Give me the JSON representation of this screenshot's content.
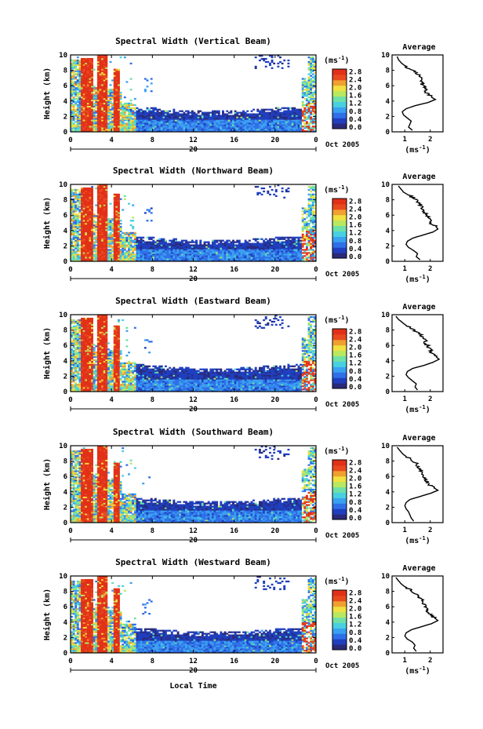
{
  "x_axis_label": "Local Time",
  "date_label": "Oct 2005",
  "day_label": "20",
  "colorbar": {
    "unit": "(ms",
    "unit_sup": "-1",
    "unit_close": ")",
    "ticks": [
      "2.8",
      "2.4",
      "2.0",
      "1.6",
      "1.2",
      "0.8",
      "0.4",
      "0.0"
    ]
  },
  "avg": {
    "title": "Average",
    "xlabel": "(ms",
    "xlabel_sup": "-1",
    "xlabel_close": ")"
  },
  "colors": {
    "scale": [
      "#2a2a7a",
      "#1f3fbf",
      "#2f6fe8",
      "#3aa0f0",
      "#48d0e0",
      "#6ee0a8",
      "#b8e860",
      "#f0e040",
      "#f0a030",
      "#e84a1e",
      "#e23018"
    ]
  },
  "chart_data": [
    {
      "type": "heatmap",
      "title": "Spectral Width (Vertical Beam)",
      "ylabel": "Height (km)",
      "xlabel": "",
      "xlim": [
        0,
        24
      ],
      "ylim": [
        0,
        10
      ],
      "x_ticks": [
        "0",
        "4",
        "8",
        "12",
        "16",
        "20",
        "0"
      ],
      "y_ticks": [
        "0",
        "2",
        "4",
        "6",
        "8",
        "10"
      ],
      "colorbar_range": [
        0.0,
        2.8
      ],
      "average_profile": {
        "title": "Average",
        "x_ticks": [
          "1",
          "2"
        ],
        "xlim": [
          0.5,
          2.5
        ],
        "y_ticks": [
          "0",
          "2",
          "4",
          "6",
          "8",
          "10"
        ],
        "heights": [
          0.2,
          0.6,
          1.0,
          1.4,
          1.8,
          2.2,
          2.6,
          3.0,
          3.4,
          3.8,
          4.2,
          4.6,
          5.0,
          5.4,
          5.8,
          6.2,
          6.6,
          7.0,
          7.4,
          7.8,
          8.2,
          8.6,
          9.0,
          9.4,
          9.8
        ],
        "values": [
          1.3,
          1.15,
          1.2,
          1.25,
          1.1,
          0.95,
          0.9,
          1.05,
          1.4,
          1.9,
          2.2,
          2.0,
          1.9,
          1.8,
          1.75,
          1.7,
          1.65,
          1.6,
          1.55,
          1.4,
          1.2,
          1.0,
          0.85,
          0.75,
          0.7
        ]
      }
    },
    {
      "type": "heatmap",
      "title": "Spectral Width (Northward Beam)",
      "ylabel": "Height (km)",
      "xlabel": "",
      "xlim": [
        0,
        24
      ],
      "ylim": [
        0,
        10
      ],
      "x_ticks": [
        "0",
        "4",
        "8",
        "12",
        "16",
        "20",
        "0"
      ],
      "y_ticks": [
        "0",
        "2",
        "4",
        "6",
        "8",
        "10"
      ],
      "colorbar_range": [
        0.0,
        2.8
      ],
      "average_profile": {
        "title": "Average",
        "x_ticks": [
          "1",
          "2"
        ],
        "xlim": [
          0.5,
          2.5
        ],
        "y_ticks": [
          "0",
          "2",
          "4",
          "6",
          "8",
          "10"
        ],
        "heights": [
          0.2,
          0.6,
          1.0,
          1.4,
          1.8,
          2.2,
          2.6,
          3.0,
          3.4,
          3.8,
          4.2,
          4.6,
          5.0,
          5.4,
          5.8,
          6.2,
          6.6,
          7.0,
          7.4,
          7.8,
          8.2,
          8.6,
          9.0,
          9.4,
          9.8
        ],
        "values": [
          1.6,
          1.45,
          1.5,
          1.35,
          1.15,
          1.05,
          1.1,
          1.3,
          1.7,
          2.1,
          2.3,
          2.2,
          2.0,
          1.95,
          1.9,
          1.8,
          1.75,
          1.7,
          1.6,
          1.5,
          1.35,
          1.15,
          0.95,
          0.85,
          0.75
        ]
      }
    },
    {
      "type": "heatmap",
      "title": "Spectral Width (Eastward Beam)",
      "ylabel": "Height (km)",
      "xlabel": "",
      "xlim": [
        0,
        24
      ],
      "ylim": [
        0,
        10
      ],
      "x_ticks": [
        "0",
        "4",
        "8",
        "12",
        "16",
        "20",
        "0"
      ],
      "y_ticks": [
        "0",
        "2",
        "4",
        "6",
        "8",
        "10"
      ],
      "colorbar_range": [
        0.0,
        2.8
      ],
      "average_profile": {
        "title": "Average",
        "x_ticks": [
          "1",
          "2"
        ],
        "xlim": [
          0.5,
          2.5
        ],
        "y_ticks": [
          "0",
          "2",
          "4",
          "6",
          "8",
          "10"
        ],
        "heights": [
          0.2,
          0.6,
          1.0,
          1.4,
          1.8,
          2.2,
          2.6,
          3.0,
          3.4,
          3.8,
          4.2,
          4.6,
          5.0,
          5.4,
          5.8,
          6.2,
          6.6,
          7.0,
          7.4,
          7.8,
          8.2,
          8.6,
          9.0,
          9.4,
          9.8
        ],
        "values": [
          1.5,
          1.4,
          1.45,
          1.3,
          1.15,
          1.05,
          1.1,
          1.3,
          1.75,
          2.1,
          2.35,
          2.2,
          2.05,
          2.0,
          1.9,
          1.85,
          1.8,
          1.7,
          1.6,
          1.45,
          1.25,
          1.05,
          0.9,
          0.75,
          0.65
        ]
      }
    },
    {
      "type": "heatmap",
      "title": "Spectral Width (Southward Beam)",
      "ylabel": "Height (km)",
      "xlabel": "",
      "xlim": [
        0,
        24
      ],
      "ylim": [
        0,
        10
      ],
      "x_ticks": [
        "0",
        "4",
        "8",
        "12",
        "16",
        "20",
        "0"
      ],
      "y_ticks": [
        "0",
        "2",
        "4",
        "6",
        "8",
        "10"
      ],
      "colorbar_range": [
        0.0,
        2.8
      ],
      "average_profile": {
        "title": "Average",
        "x_ticks": [
          "1",
          "2"
        ],
        "xlim": [
          0.5,
          2.5
        ],
        "y_ticks": [
          "0",
          "2",
          "4",
          "6",
          "8",
          "10"
        ],
        "heights": [
          0.2,
          0.6,
          1.0,
          1.4,
          1.8,
          2.2,
          2.6,
          3.0,
          3.4,
          3.8,
          4.2,
          4.6,
          5.0,
          5.4,
          5.8,
          6.2,
          6.6,
          7.0,
          7.4,
          7.8,
          8.2,
          8.6,
          9.0,
          9.4,
          9.8
        ],
        "values": [
          1.35,
          1.25,
          1.2,
          1.15,
          1.05,
          1.0,
          1.05,
          1.2,
          1.6,
          2.0,
          2.3,
          2.1,
          1.95,
          1.85,
          1.8,
          1.75,
          1.7,
          1.6,
          1.5,
          1.4,
          1.25,
          1.05,
          0.9,
          0.8,
          0.7
        ]
      }
    },
    {
      "type": "heatmap",
      "title": "Spectral Width (Westward Beam)",
      "ylabel": "Height (km)",
      "xlabel": "Local Time",
      "xlim": [
        0,
        24
      ],
      "ylim": [
        0,
        10
      ],
      "x_ticks": [
        "0",
        "4",
        "8",
        "12",
        "16",
        "20",
        "0"
      ],
      "y_ticks": [
        "0",
        "2",
        "4",
        "6",
        "8",
        "10"
      ],
      "colorbar_range": [
        0.0,
        2.8
      ],
      "average_profile": {
        "title": "Average",
        "x_ticks": [
          "1",
          "2"
        ],
        "xlim": [
          0.5,
          2.5
        ],
        "y_ticks": [
          "0",
          "2",
          "4",
          "6",
          "8",
          "10"
        ],
        "heights": [
          0.2,
          0.6,
          1.0,
          1.4,
          1.8,
          2.2,
          2.6,
          3.0,
          3.4,
          3.8,
          4.2,
          4.6,
          5.0,
          5.4,
          5.8,
          6.2,
          6.6,
          7.0,
          7.4,
          7.8,
          8.2,
          8.6,
          9.0,
          9.4,
          9.8
        ],
        "values": [
          1.45,
          1.35,
          1.4,
          1.3,
          1.1,
          1.0,
          1.05,
          1.25,
          1.65,
          2.05,
          2.3,
          2.15,
          2.0,
          1.9,
          1.85,
          1.8,
          1.75,
          1.65,
          1.55,
          1.4,
          1.2,
          1.0,
          0.85,
          0.75,
          0.65
        ]
      }
    }
  ]
}
